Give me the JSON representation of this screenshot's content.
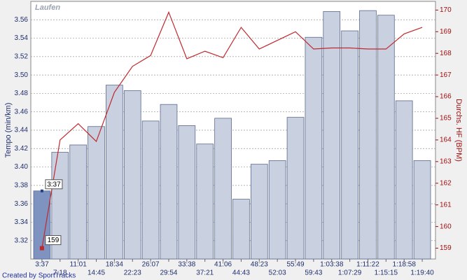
{
  "chart_data": {
    "type": "bar-line",
    "title": "Laufen",
    "ylabel": "Tempo (min/km)",
    "y2label": "Durchs. HF (BPM)",
    "footer": "Created by SportTracks",
    "categories": [
      "3:37",
      "7:18",
      "11:01",
      "14:45",
      "18:34",
      "22:23",
      "26:07",
      "29:54",
      "33:38",
      "37:21",
      "41:06",
      "44:43",
      "48:23",
      "52:03",
      "55:49",
      "59:43",
      "1:03:38",
      "1:07:29",
      "1:11:22",
      "1:15:15",
      "1:18:58",
      "1:19:40"
    ],
    "series": [
      {
        "name": "Tempo",
        "type": "bar",
        "color": "#c9d0e0",
        "values": [
          3.374,
          3.416,
          3.424,
          3.444,
          3.489,
          3.483,
          3.45,
          3.468,
          3.445,
          3.425,
          3.453,
          3.365,
          3.403,
          3.407,
          3.454,
          3.541,
          3.569,
          3.548,
          3.57,
          3.565,
          3.472,
          3.407
        ]
      },
      {
        "name": "HF",
        "type": "line",
        "axis": "y2",
        "color": "#c0282d",
        "values": [
          159,
          164.0,
          164.75,
          163.93,
          166.2,
          167.4,
          167.9,
          169.9,
          167.75,
          168.1,
          167.8,
          169.2,
          168.2,
          168.6,
          169.0,
          168.2,
          168.25,
          168.25,
          168.2,
          168.2,
          168.9,
          169.2
        ],
        "value_labels": [
          "159",
          null,
          null,
          null,
          null,
          null,
          null,
          null,
          null,
          null,
          null,
          null,
          null,
          null,
          null,
          null,
          null,
          null,
          null,
          null,
          null,
          null
        ]
      }
    ],
    "annotations": [
      "3:37"
    ],
    "selected": 0,
    "highlight_color": "#7e93c0",
    "ylim": [
      3.3,
      3.58
    ],
    "yticks": [
      3.32,
      3.34,
      3.36,
      3.38,
      {
        "value": 3.4,
        "label": "3.40"
      },
      3.42,
      3.44,
      3.46,
      3.48,
      {
        "value": 3.5,
        "label": "3.50"
      },
      3.52,
      3.54,
      3.56
    ],
    "y2lim": [
      158.5,
      170.4
    ],
    "y2ticks": [
      159,
      160,
      161,
      162,
      163,
      164,
      165,
      166,
      167,
      168,
      169,
      170
    ],
    "grid": true
  }
}
